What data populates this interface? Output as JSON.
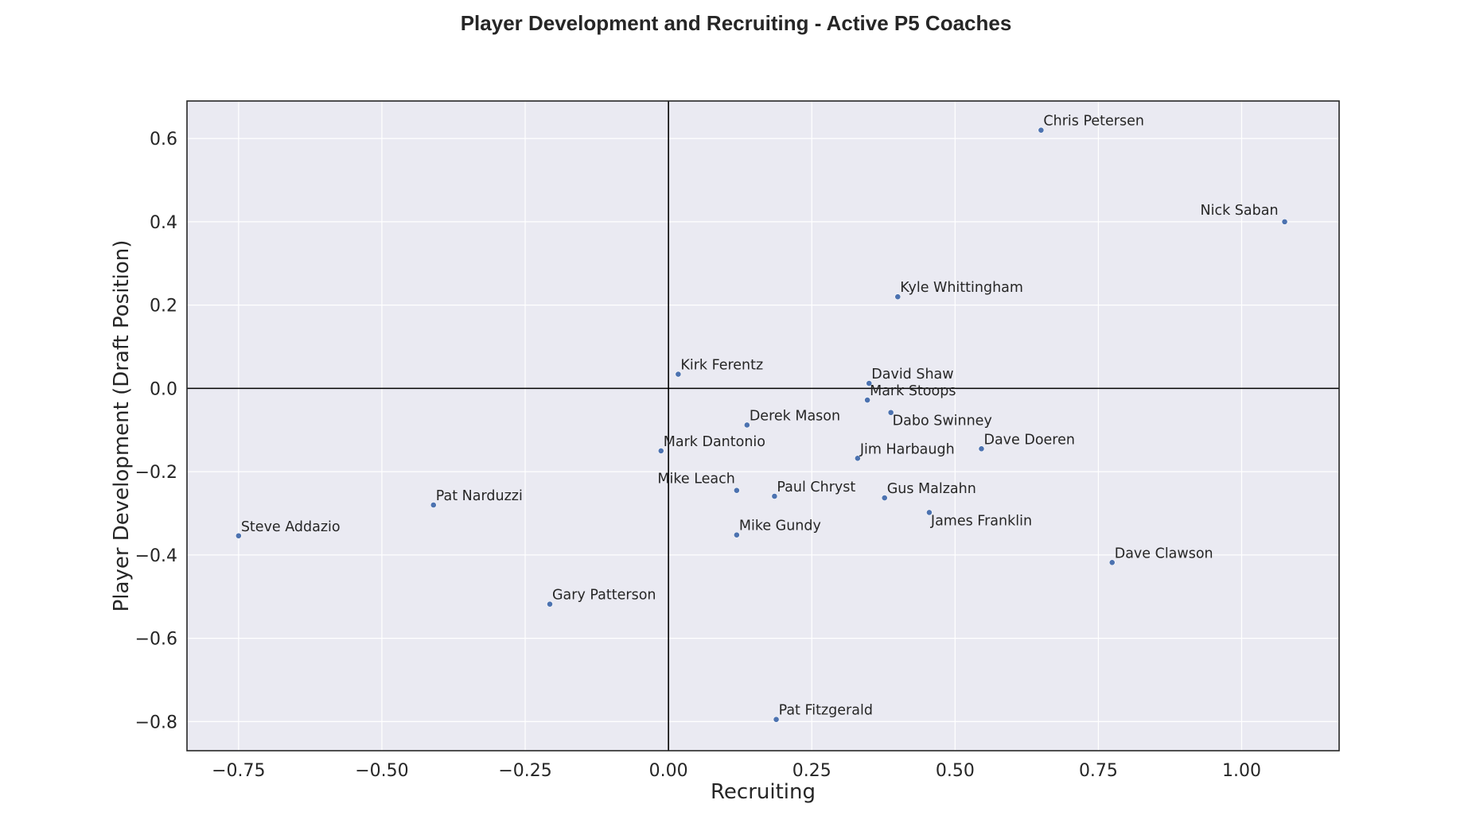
{
  "chart_data": {
    "type": "scatter",
    "title": "Player Development and Recruiting - Active P5 Coaches",
    "xlabel": "Recruiting",
    "ylabel": "Player Development (Draft Position)",
    "xlim": [
      -0.84,
      1.17
    ],
    "ylim": [
      -0.87,
      0.69
    ],
    "xticks": [
      -0.75,
      -0.5,
      -0.25,
      0.0,
      0.25,
      0.5,
      0.75,
      1.0
    ],
    "xtick_labels": [
      "−0.75",
      "−0.50",
      "−0.25",
      "0.00",
      "0.25",
      "0.50",
      "0.75",
      "1.00"
    ],
    "yticks": [
      0.6,
      0.4,
      0.2,
      0.0,
      -0.2,
      -0.4,
      -0.6,
      -0.8
    ],
    "ytick_labels": [
      "0.6",
      "0.4",
      "0.2",
      "0.0",
      "−0.2",
      "−0.4",
      "−0.6",
      "−0.8"
    ],
    "grid": true,
    "reference_lines": {
      "x": 0,
      "y": 0
    },
    "colors": {
      "background": "#eaeaf2",
      "point": "#4c72b0",
      "grid": "#ffffff",
      "axis_line": "#000000",
      "text": "#262626"
    },
    "points": [
      {
        "label": "Chris Petersen",
        "x": 0.65,
        "y": 0.62
      },
      {
        "label": "Nick Saban",
        "x": 1.075,
        "y": 0.4
      },
      {
        "label": "Kyle Whittingham",
        "x": 0.4,
        "y": 0.22
      },
      {
        "label": "Kirk Ferentz",
        "x": 0.017,
        "y": 0.034
      },
      {
        "label": "David Shaw",
        "x": 0.35,
        "y": 0.012
      },
      {
        "label": "Mark Stoops",
        "x": 0.347,
        "y": -0.028
      },
      {
        "label": "Dabo Swinney",
        "x": 0.388,
        "y": -0.058
      },
      {
        "label": "Derek Mason",
        "x": 0.137,
        "y": -0.088
      },
      {
        "label": "Mark Dantonio",
        "x": -0.013,
        "y": -0.15
      },
      {
        "label": "Dave Doeren",
        "x": 0.546,
        "y": -0.145
      },
      {
        "label": "Jim Harbaugh",
        "x": 0.33,
        "y": -0.168
      },
      {
        "label": "Mike Leach",
        "x": 0.119,
        "y": -0.245
      },
      {
        "label": "Paul Chryst",
        "x": 0.185,
        "y": -0.259
      },
      {
        "label": "Gus Malzahn",
        "x": 0.377,
        "y": -0.263
      },
      {
        "label": "James Franklin",
        "x": 0.455,
        "y": -0.298
      },
      {
        "label": "Mike Gundy",
        "x": 0.119,
        "y": -0.352
      },
      {
        "label": "Pat Narduzzi",
        "x": -0.41,
        "y": -0.28
      },
      {
        "label": "Steve Addazio",
        "x": -0.75,
        "y": -0.354
      },
      {
        "label": "Dave Clawson",
        "x": 0.774,
        "y": -0.418
      },
      {
        "label": "Gary Patterson",
        "x": -0.207,
        "y": -0.518
      },
      {
        "label": "Pat Fitzgerald",
        "x": 0.188,
        "y": -0.795
      }
    ]
  }
}
